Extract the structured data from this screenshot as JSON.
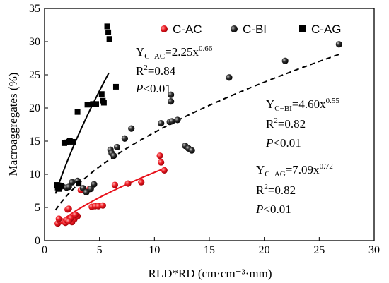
{
  "chart_data": {
    "type": "scatter",
    "xlabel": "RLD*RD (cm·cm⁻³·mm)",
    "ylabel": "Macroaggregates (%)",
    "xlim": [
      0,
      30
    ],
    "ylim": [
      0,
      35
    ],
    "xticks": [
      0,
      5,
      10,
      15,
      20,
      25,
      30
    ],
    "yticks": [
      0,
      5,
      10,
      15,
      20,
      25,
      30,
      35
    ],
    "grid": false,
    "legend_position": "top-right",
    "series": [
      {
        "name": "C-AC",
        "marker": "circle",
        "color": "#e8101a",
        "fit": {
          "a": 2.25,
          "b": 0.66,
          "range": [
            1.0,
            10.9
          ],
          "style": "solid"
        },
        "x": [
          1.2,
          1.4,
          1.6,
          1.9,
          2.1,
          2.2,
          2.3,
          2.5,
          2.7,
          2.9,
          1.3,
          2.0,
          2.4,
          3.0,
          3.3,
          4.3,
          4.6,
          4.9,
          5.3,
          6.4,
          7.6,
          8.8,
          10.5,
          10.6,
          10.9,
          2.2,
          4.1,
          2.8
        ],
        "y": [
          2.6,
          3.0,
          2.9,
          2.7,
          4.7,
          4.8,
          3.0,
          2.8,
          3.2,
          3.6,
          3.3,
          3.1,
          3.4,
          3.7,
          7.6,
          5.1,
          5.2,
          5.2,
          5.3,
          8.4,
          8.6,
          8.8,
          12.8,
          11.8,
          10.6,
          2.9,
          7.8,
          3.9
        ]
      },
      {
        "name": "C-BI",
        "marker": "sphere",
        "color": "#111111",
        "fit": {
          "a": 4.6,
          "b": 0.55,
          "range": [
            1.0,
            26.8
          ],
          "style": "dashed"
        },
        "x": [
          1.2,
          1.6,
          2.0,
          2.5,
          3.0,
          3.5,
          3.8,
          4.2,
          4.5,
          6.0,
          6.1,
          6.3,
          6.6,
          7.3,
          7.9,
          10.6,
          11.4,
          11.5,
          11.5,
          11.6,
          12.1,
          12.8,
          13.1,
          13.4,
          16.8,
          21.9,
          26.8,
          1.4,
          2.2
        ],
        "y": [
          8.1,
          8.2,
          8.0,
          8.8,
          9.0,
          7.9,
          7.3,
          7.8,
          8.5,
          13.7,
          13.2,
          12.8,
          14.1,
          15.4,
          16.9,
          17.7,
          17.9,
          21.0,
          22.0,
          18.0,
          18.2,
          14.3,
          13.9,
          13.6,
          24.6,
          27.1,
          29.6,
          8.3,
          8.1
        ]
      },
      {
        "name": "C-AG",
        "marker": "square",
        "color": "#000000",
        "fit": {
          "a": 7.09,
          "b": 0.72,
          "range": [
            1.0,
            5.85
          ],
          "style": "solid"
        },
        "x": [
          1.1,
          1.2,
          1.5,
          1.8,
          2.0,
          2.2,
          2.3,
          2.6,
          3.0,
          3.1,
          3.9,
          4.4,
          4.7,
          5.2,
          5.3,
          5.4,
          5.7,
          5.8,
          5.9,
          6.5,
          1.3
        ],
        "y": [
          8.4,
          8.0,
          8.3,
          14.7,
          14.8,
          14.9,
          15.0,
          14.9,
          19.4,
          8.6,
          20.5,
          20.6,
          20.6,
          22.1,
          21.1,
          20.8,
          32.3,
          31.4,
          30.4,
          23.2,
          7.8
        ]
      }
    ],
    "annotations": [
      {
        "series": "C-AC",
        "label_prefix": "Y",
        "label_sub": "C−AC",
        "equation": "=2.25x",
        "exponent": "0.66",
        "r2_prefix": "R",
        "r2_sup": "2",
        "r2_value": "=0.84",
        "p_italic": "P",
        "p_value": "<0.01"
      },
      {
        "series": "C-BI",
        "label_prefix": "Y",
        "label_sub": "C−BI",
        "equation": "=4.60x",
        "exponent": "0.55",
        "r2_prefix": "R",
        "r2_sup": "2",
        "r2_value": "=0.82",
        "p_italic": "P",
        "p_value": "<0.01"
      },
      {
        "series": "C-AG",
        "label_prefix": "Y",
        "label_sub": "C−AG",
        "equation": "=7.09x",
        "exponent": "0.72",
        "r2_prefix": "R",
        "r2_sup": "2",
        "r2_value": "=0.82",
        "p_italic": "P",
        "p_value": "<0.01"
      }
    ]
  }
}
